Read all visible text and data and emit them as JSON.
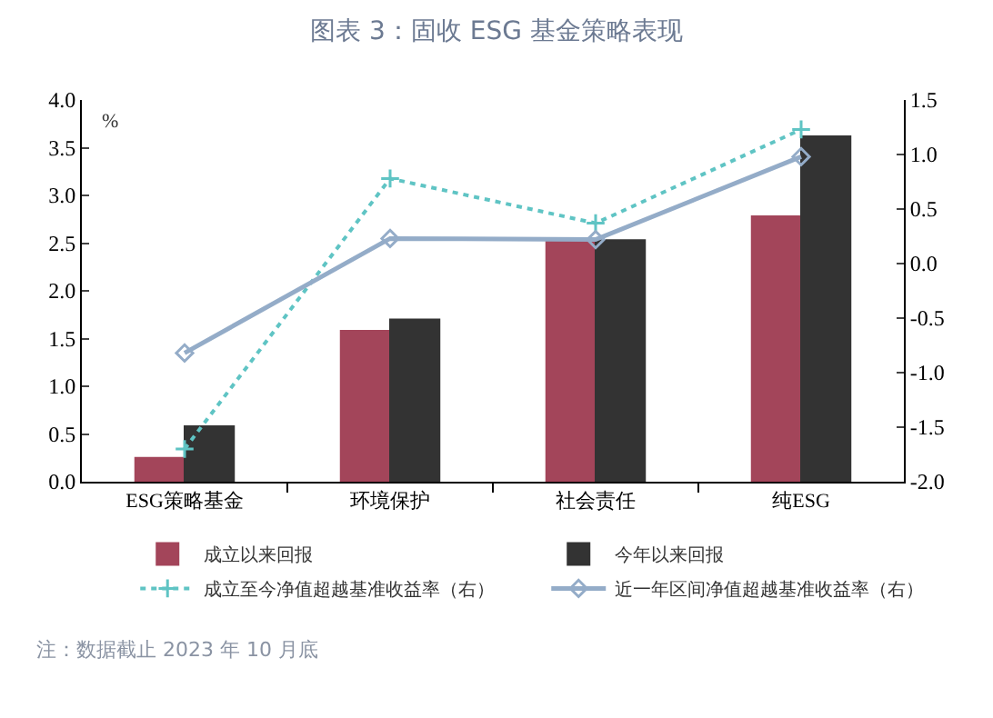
{
  "chart_data": {
    "type": "bar",
    "title": "图表 3：固收 ESG 基金策略表现",
    "ylabel": "%",
    "categories": [
      "ESG策略基金",
      "环境保护",
      "社会责任",
      "纯ESG"
    ],
    "series": [
      {
        "name": "成立以来回报",
        "color": "#a3455a",
        "values": [
          0.25,
          1.58,
          2.55,
          2.78
        ]
      },
      {
        "name": "今年以来回报",
        "color": "#333333",
        "values": [
          0.58,
          1.7,
          2.53,
          3.62
        ]
      },
      {
        "name": "成立至今净值超越基准收益率（右）",
        "type": "line",
        "axis": "y2",
        "color": "#5fc4c4",
        "line_style": "dotted",
        "marker": "cross",
        "values": [
          -1.7,
          0.78,
          0.37,
          1.23
        ]
      },
      {
        "name": "近一年区间净值超越基准收益率（右）",
        "type": "line",
        "axis": "y2",
        "color": "#94acc8",
        "line_style": "solid",
        "marker": "diamond",
        "values": [
          -0.82,
          0.23,
          0.22,
          0.98
        ]
      }
    ],
    "ylim": [
      0,
      4
    ],
    "yticks": [
      {
        "value": 0,
        "label": "0.0"
      },
      {
        "value": 0.5,
        "label": "0.5"
      },
      {
        "value": 1,
        "label": "1.0"
      },
      {
        "value": 1.5,
        "label": "1.5"
      },
      {
        "value": 2,
        "label": "2.0"
      },
      {
        "value": 2.5,
        "label": "2.5"
      },
      {
        "value": 3,
        "label": "3.0"
      },
      {
        "value": 3.5,
        "label": "3.5"
      },
      {
        "value": 4,
        "label": "4.0"
      }
    ],
    "y2lim": [
      -2,
      1.5
    ],
    "y2ticks": [
      {
        "value": -2,
        "label": "-2.0"
      },
      {
        "value": -1.5,
        "label": "-1.5"
      },
      {
        "value": -1,
        "label": "-1.0"
      },
      {
        "value": -0.5,
        "label": "-0.5"
      },
      {
        "value": 0,
        "label": "0.0"
      },
      {
        "value": 0.5,
        "label": "0.5"
      },
      {
        "value": 1,
        "label": "1.0"
      },
      {
        "value": 1.5,
        "label": "1.5"
      }
    ],
    "grid": false,
    "legend": "bottom",
    "annotations": [
      "注：数据截止 2023 年 10 月底"
    ]
  }
}
